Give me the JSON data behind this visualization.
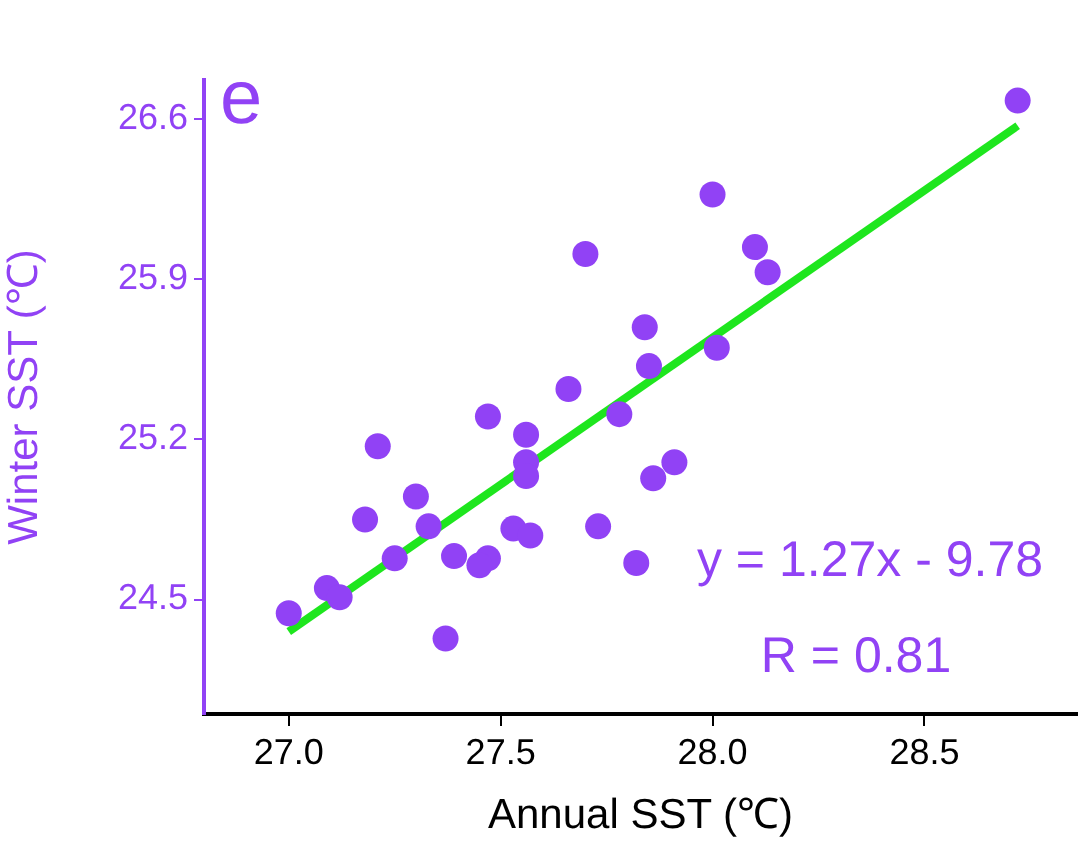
{
  "chart_data": {
    "type": "scatter",
    "xlabel": "Annual SST (℃)",
    "ylabel": "Winter SST (℃)",
    "xlim": [
      26.8,
      28.86
    ],
    "xticks": [
      {
        "value": 27,
        "label": "27.0"
      },
      27.5,
      {
        "value": 28,
        "label": "28.0"
      },
      28.5
    ],
    "ylim": [
      24.0,
      26.77
    ],
    "yticks": [
      24.5,
      25.2,
      25.9,
      26.6
    ],
    "grid": false,
    "legend": false,
    "marker": "circle",
    "annotations": [
      "e",
      "y = 1.27x - 9.78",
      "R = 0.81"
    ],
    "series": [
      {
        "type": "scatter",
        "color": "#9142f5",
        "x": [
          28.72,
          28.0,
          27.7,
          28.1,
          28.13,
          27.84,
          27.85,
          28.01,
          27.66,
          27.47,
          27.56,
          27.78,
          27.21,
          27.56,
          27.56,
          27.3,
          27.18,
          27.33,
          27.53,
          27.57,
          27.91,
          27.86,
          27.73,
          27.39,
          27.47,
          27.45,
          27.25,
          27.82,
          27.09,
          27.12,
          27.0,
          27.37
        ],
        "values": [
          26.68,
          26.27,
          26.01,
          26.04,
          25.93,
          25.69,
          25.52,
          25.6,
          25.42,
          25.3,
          25.22,
          25.31,
          25.17,
          25.1,
          25.04,
          24.95,
          24.85,
          24.82,
          24.81,
          24.78,
          25.1,
          25.03,
          24.82,
          24.69,
          24.68,
          24.65,
          24.68,
          24.66,
          24.55,
          24.51,
          24.44,
          24.33
        ]
      },
      {
        "type": "line",
        "color": "#1ee61e",
        "marker": "none",
        "line_style": "solid",
        "x": [
          27.0,
          28.72
        ],
        "values": [
          24.36,
          26.57
        ]
      }
    ]
  }
}
